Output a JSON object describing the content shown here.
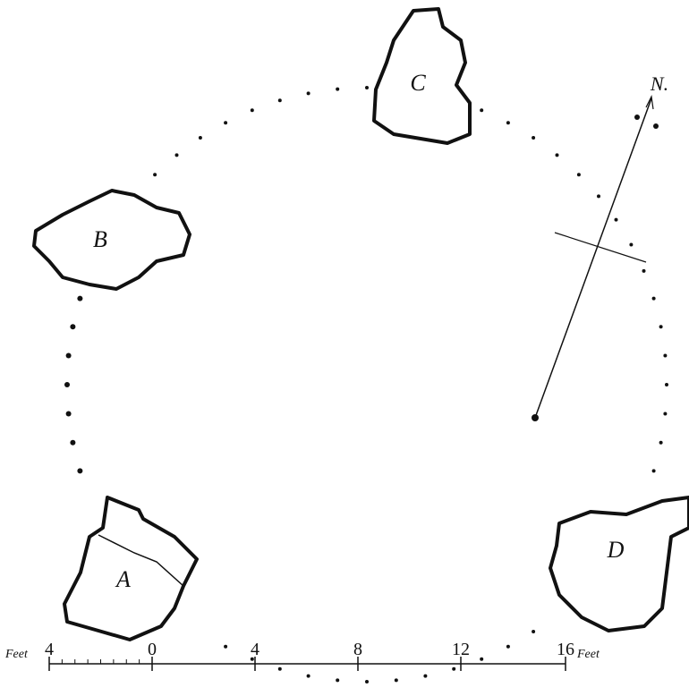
{
  "stones": [
    {
      "label": "A"
    },
    {
      "label": "B"
    },
    {
      "label": "C"
    },
    {
      "label": "D"
    }
  ],
  "compass": {
    "label": "N."
  },
  "scale": {
    "unit_left": "Feet",
    "labels": [
      "4",
      "0",
      "4",
      "8",
      "12",
      "16"
    ],
    "unit_right": "Feet"
  }
}
